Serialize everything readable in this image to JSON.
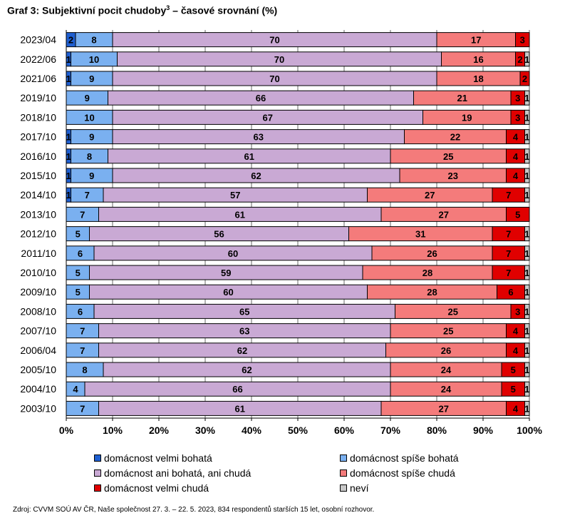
{
  "title": {
    "main": "Graf 3: Subjektivní pocit chudoby",
    "sup": "3",
    "rest": " – časové srovnání (%)"
  },
  "chart_data": {
    "type": "bar",
    "orientation": "horizontal",
    "stacked": "100%",
    "categories": [
      "2023/04",
      "2022/06",
      "2021/06",
      "2019/10",
      "2018/10",
      "2017/10",
      "2016/10",
      "2015/10",
      "2014/10",
      "2013/10",
      "2012/10",
      "2011/10",
      "2010/10",
      "2009/10",
      "2008/10",
      "2007/10",
      "2006/04",
      "2005/10",
      "2004/10",
      "2003/10"
    ],
    "series": [
      {
        "name": "domácnost velmi bohatá",
        "color": "#1f5fd1",
        "values": [
          2,
          1,
          1,
          0,
          0,
          1,
          1,
          1,
          1,
          0,
          0,
          0,
          0,
          0,
          0,
          0,
          0,
          0,
          0,
          0
        ]
      },
      {
        "name": "domácnost spíše bohatá",
        "color": "#7ab0f0",
        "values": [
          8,
          10,
          9,
          9,
          10,
          9,
          8,
          9,
          7,
          7,
          5,
          6,
          5,
          5,
          6,
          7,
          7,
          8,
          4,
          7
        ]
      },
      {
        "name": "domácnost ani bohatá, ani chudá",
        "color": "#c9a9d4",
        "values": [
          70,
          70,
          70,
          66,
          67,
          63,
          61,
          62,
          57,
          61,
          56,
          60,
          59,
          60,
          65,
          63,
          62,
          62,
          66,
          61
        ]
      },
      {
        "name": "domácnost spíše chudá",
        "color": "#f47b7b",
        "values": [
          17,
          16,
          18,
          21,
          19,
          22,
          25,
          23,
          27,
          27,
          31,
          26,
          28,
          28,
          25,
          25,
          26,
          24,
          24,
          27
        ]
      },
      {
        "name": "domácnost velmi chudá",
        "color": "#e00000",
        "values": [
          3,
          2,
          2,
          3,
          3,
          4,
          4,
          4,
          7,
          5,
          7,
          7,
          7,
          6,
          3,
          4,
          4,
          5,
          5,
          4
        ]
      },
      {
        "name": "neví",
        "color": "#c8c8c8",
        "values": [
          0,
          1,
          0,
          1,
          1,
          1,
          1,
          1,
          1,
          0,
          1,
          1,
          1,
          1,
          1,
          1,
          1,
          1,
          1,
          1
        ]
      }
    ],
    "xaxis": {
      "ticks": [
        "0%",
        "10%",
        "20%",
        "30%",
        "40%",
        "50%",
        "60%",
        "70%",
        "80%",
        "90%",
        "100%"
      ],
      "range": [
        0,
        100
      ]
    },
    "legend_position": "bottom",
    "grid": true
  },
  "source": "Zdroj: CVVM SOÚ AV ČR, Naše společnost 27. 3. – 22. 5. 2023, 834  respondentů starších 15 let, osobní rozhovor."
}
